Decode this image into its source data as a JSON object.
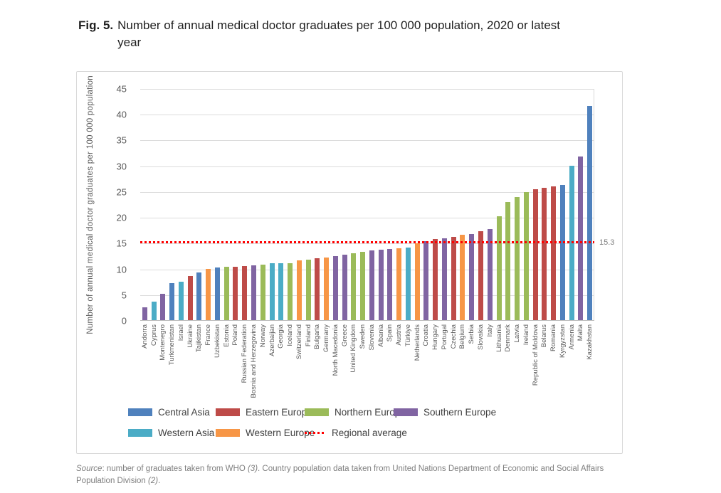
{
  "title": {
    "label": "Fig. 5.",
    "line1": "Number of annual medical doctor graduates per 100 000 population, 2020",
    "line2": "or latest year"
  },
  "chart_data": {
    "type": "bar",
    "title": "Fig. 5. Number of annual medical doctor graduates per 100 000 population, 2020 or latest year",
    "ylabel": "Number of annual medical doctor graduates per 100 000 population",
    "xlabel": "",
    "ylim": [
      0,
      45
    ],
    "ytick_step": 5,
    "grid": true,
    "legend_position": "bottom",
    "regional_average": {
      "value": 15.3,
      "label": "15.3",
      "legend_label": "Regional average",
      "color": "#FF0000"
    },
    "region_colors": {
      "Central Asia": "#4F81BD",
      "Eastern Europe": "#BE4B48",
      "Northern Europe": "#9BBB59",
      "Southern Europe": "#8064A2",
      "Western Asia": "#4BACC6",
      "Western Europe": "#F79646"
    },
    "legend_order": [
      "Central Asia",
      "Eastern Europe",
      "Northern Europe",
      "Southern Europe",
      "Western Asia",
      "Western Europe"
    ],
    "bars": [
      {
        "country": "Andorra",
        "region": "Southern Europe",
        "value": 2.5
      },
      {
        "country": "Cyprus",
        "region": "Western Asia",
        "value": 3.6
      },
      {
        "country": "Montenegro",
        "region": "Southern Europe",
        "value": 5.1
      },
      {
        "country": "Turkmenistan",
        "region": "Central Asia",
        "value": 7.2
      },
      {
        "country": "Israel",
        "region": "Western Asia",
        "value": 7.5
      },
      {
        "country": "Ukraine",
        "region": "Eastern Europe",
        "value": 8.6
      },
      {
        "country": "Tajikistan",
        "region": "Central Asia",
        "value": 9.3
      },
      {
        "country": "France",
        "region": "Western Europe",
        "value": 9.9
      },
      {
        "country": "Uzbekistan",
        "region": "Central Asia",
        "value": 10.2
      },
      {
        "country": "Estonia",
        "region": "Northern Europe",
        "value": 10.3
      },
      {
        "country": "Poland",
        "region": "Eastern Europe",
        "value": 10.4
      },
      {
        "country": "Russian Federation",
        "region": "Eastern Europe",
        "value": 10.5
      },
      {
        "country": "Bosnia and Herzegovina",
        "region": "Southern Europe",
        "value": 10.7
      },
      {
        "country": "Norway",
        "region": "Northern Europe",
        "value": 10.8
      },
      {
        "country": "Azerbaijan",
        "region": "Western Asia",
        "value": 11.0
      },
      {
        "country": "Georgia",
        "region": "Western Asia",
        "value": 11.1
      },
      {
        "country": "Iceland",
        "region": "Northern Europe",
        "value": 11.1
      },
      {
        "country": "Switzerland",
        "region": "Western Europe",
        "value": 11.6
      },
      {
        "country": "Finland",
        "region": "Northern Europe",
        "value": 11.8
      },
      {
        "country": "Bulgaria",
        "region": "Eastern Europe",
        "value": 12.0
      },
      {
        "country": "Germany",
        "region": "Western Europe",
        "value": 12.2
      },
      {
        "country": "North Macedonia",
        "region": "Southern Europe",
        "value": 12.4
      },
      {
        "country": "Greece",
        "region": "Southern Europe",
        "value": 12.7
      },
      {
        "country": "United Kingdom",
        "region": "Northern Europe",
        "value": 13.0
      },
      {
        "country": "Sweden",
        "region": "Northern Europe",
        "value": 13.3
      },
      {
        "country": "Slovenia",
        "region": "Southern Europe",
        "value": 13.5
      },
      {
        "country": "Albania",
        "region": "Southern Europe",
        "value": 13.7
      },
      {
        "country": "Spain",
        "region": "Southern Europe",
        "value": 13.8
      },
      {
        "country": "Austria",
        "region": "Western Europe",
        "value": 13.9
      },
      {
        "country": "Türkiye",
        "region": "Western Asia",
        "value": 14.1
      },
      {
        "country": "Netherlands",
        "region": "Western Europe",
        "value": 14.9
      },
      {
        "country": "Croatia",
        "region": "Southern Europe",
        "value": 15.3
      },
      {
        "country": "Hungary",
        "region": "Eastern Europe",
        "value": 15.8
      },
      {
        "country": "Portugal",
        "region": "Southern Europe",
        "value": 15.9
      },
      {
        "country": "Czechia",
        "region": "Eastern Europe",
        "value": 16.2
      },
      {
        "country": "Belgium",
        "region": "Western Europe",
        "value": 16.5
      },
      {
        "country": "Serbia",
        "region": "Southern Europe",
        "value": 16.7
      },
      {
        "country": "Slovakia",
        "region": "Eastern Europe",
        "value": 17.2
      },
      {
        "country": "Italy",
        "region": "Southern Europe",
        "value": 17.7
      },
      {
        "country": "Lithuania",
        "region": "Northern Europe",
        "value": 20.2
      },
      {
        "country": "Denmark",
        "region": "Northern Europe",
        "value": 22.9
      },
      {
        "country": "Latvia",
        "region": "Northern Europe",
        "value": 23.9
      },
      {
        "country": "Ireland",
        "region": "Northern Europe",
        "value": 24.8
      },
      {
        "country": "Republic of Moldova",
        "region": "Eastern Europe",
        "value": 25.4
      },
      {
        "country": "Belarus",
        "region": "Eastern Europe",
        "value": 25.7
      },
      {
        "country": "Romania",
        "region": "Eastern Europe",
        "value": 26.0
      },
      {
        "country": "Kyrgyzstan",
        "region": "Central Asia",
        "value": 26.2
      },
      {
        "country": "Armenia",
        "region": "Western Asia",
        "value": 29.9
      },
      {
        "country": "Malta",
        "region": "Southern Europe",
        "value": 31.8
      },
      {
        "country": "Kazakhstan",
        "region": "Central Asia",
        "value": 41.6
      }
    ]
  },
  "source": {
    "parts": [
      {
        "text": "Source",
        "italic": true
      },
      {
        "text": ": number of graduates taken from WHO ",
        "italic": false
      },
      {
        "text": "(3)",
        "italic": true
      },
      {
        "text": ". Country population data taken from United Nations Department of Economic and Social Affairs Population Division ",
        "italic": false
      },
      {
        "text": "(2)",
        "italic": true
      },
      {
        "text": ".",
        "italic": false
      }
    ]
  }
}
